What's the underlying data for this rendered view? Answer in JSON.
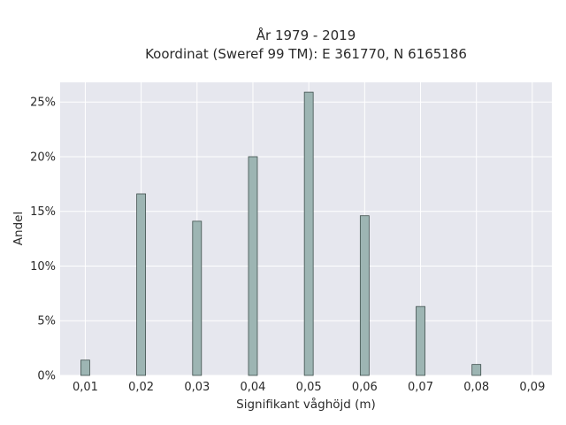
{
  "chart_data": {
    "type": "bar",
    "title_line1": "År 1979 - 2019",
    "title_line2": "Koordinat (Sweref 99 TM): E 361770, N 6165186",
    "xlabel": "Signifikant våghöjd (m)",
    "ylabel": "Andel",
    "x_ticks": [
      "0,01",
      "0,02",
      "0,03",
      "0,04",
      "0,05",
      "0,06",
      "0,07",
      "0,08",
      "0,09"
    ],
    "y_ticks": [
      "0%",
      "5%",
      "10%",
      "15%",
      "20%",
      "25%"
    ],
    "categories": [
      0.01,
      0.02,
      0.03,
      0.04,
      0.05,
      0.06,
      0.07,
      0.08
    ],
    "values": [
      1.4,
      16.6,
      14.1,
      20.0,
      25.9,
      14.6,
      6.3,
      1.0
    ],
    "xlim": [
      0.0055,
      0.0935
    ],
    "ylim": [
      0,
      26.8
    ],
    "grid": true,
    "bar_color": "#9db5b3",
    "bar_edge_color": "#3f4f4c",
    "plot_background": "#e6e7ee"
  }
}
